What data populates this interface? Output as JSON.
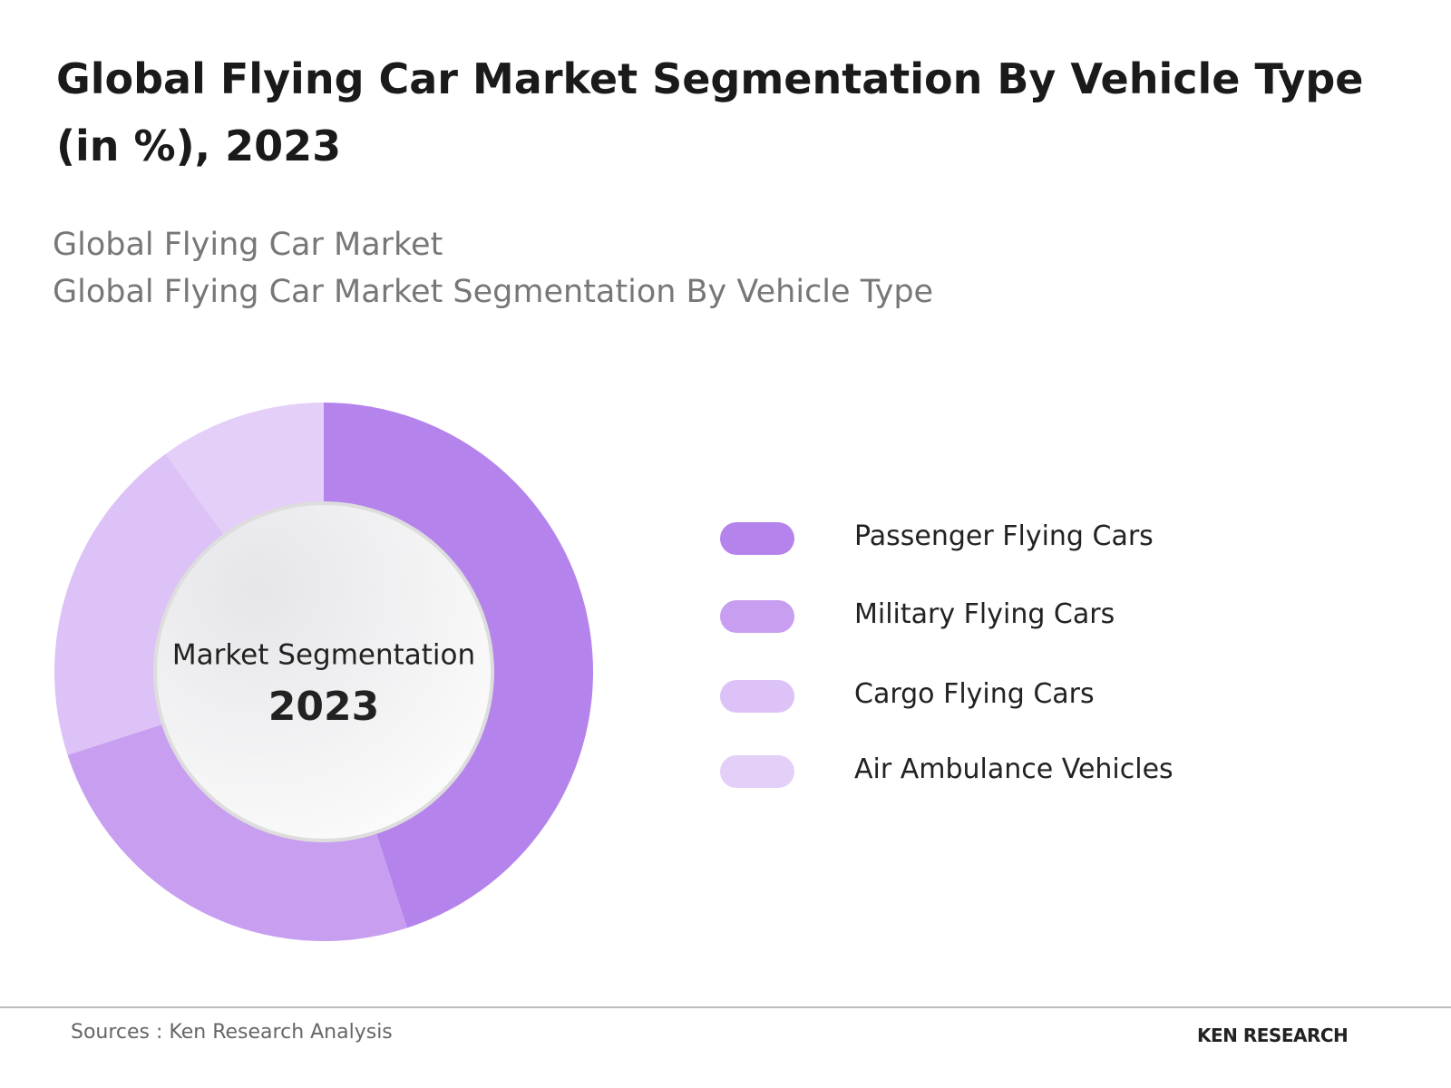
{
  "chart_data": {
    "type": "donut",
    "title": "Global Flying Car Market Segmentation By Vehicle Type (in %), 2023",
    "subtitle": [
      "Global Flying Car Market",
      "Global Flying Car Market Segmentation By Vehicle Type"
    ],
    "center_label": "Market Segmentation",
    "center_year": "2023",
    "categories": [
      "Passenger Flying Cars",
      "Military Flying Cars",
      "Cargo Flying Cars",
      "Air Ambulance Vehicles"
    ],
    "values": [
      45,
      25,
      20,
      10
    ],
    "colors": [
      "#b583ec",
      "#c89ff0",
      "#dcc2f6",
      "#e4cff8"
    ],
    "source": "Sources : Ken Research Analysis",
    "logo": "KEN RESEARCH"
  }
}
